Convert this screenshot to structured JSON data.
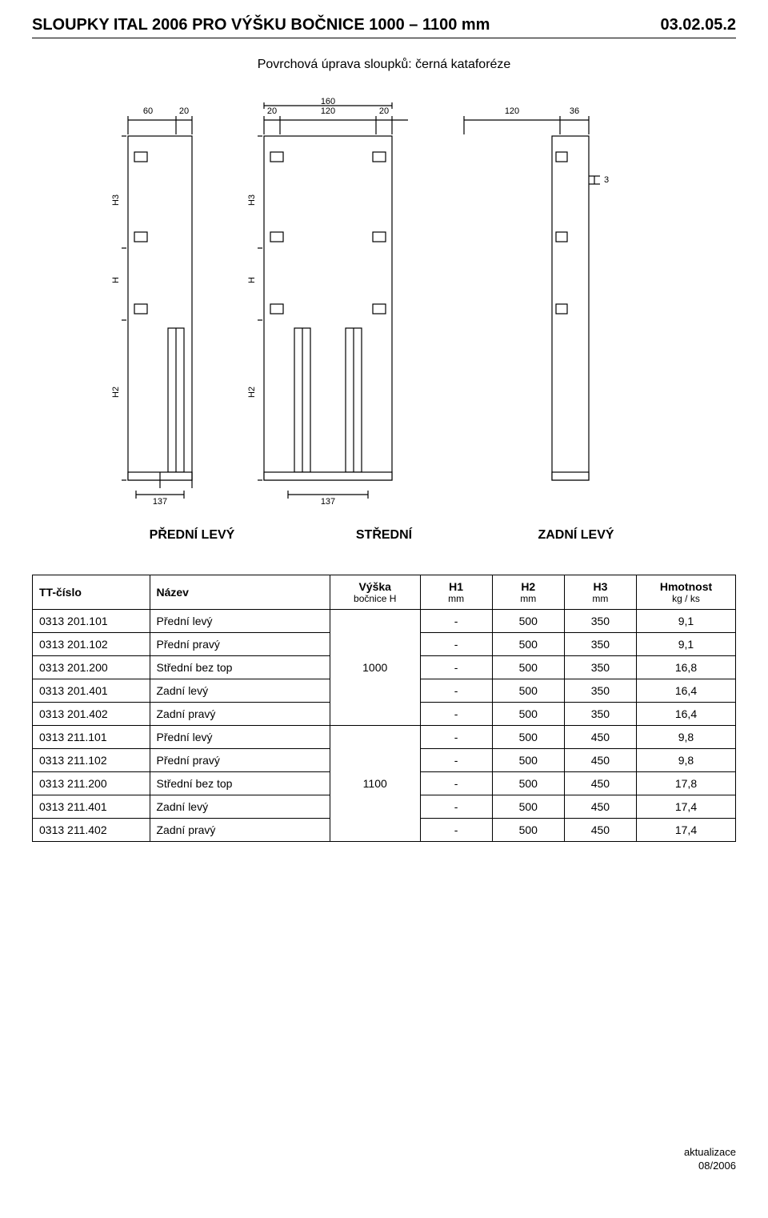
{
  "header": {
    "title_left": "SLOUPKY  ITAL 2006   PRO VÝŠKU BOČNICE  1000 – 1100 mm",
    "title_right": "03.02.05.2"
  },
  "subtitle": "Povrchová úprava sloupků: černá kataforéze",
  "diagram": {
    "dim_60": "60",
    "dim_20_a": "20",
    "dim_20_b": "20",
    "dim_160": "160",
    "dim_120_a": "120",
    "dim_20_c": "20",
    "dim_120_b": "120",
    "dim_36": "36",
    "dim_3": "3",
    "lbl_H3_a": "H3",
    "lbl_H3_b": "H3",
    "lbl_H_a": "H",
    "lbl_H_b": "H",
    "lbl_H2_a": "H2",
    "lbl_H2_b": "H2",
    "dim_137_a": "137",
    "dim_137_b": "137"
  },
  "diagram_labels": {
    "front": "PŘEDNÍ  LEVÝ",
    "mid": "STŘEDNÍ",
    "rear": "ZADNÍ  LEVÝ"
  },
  "table": {
    "headers": {
      "code": "TT-číslo",
      "name": "Název",
      "height_l1": "Výška",
      "height_l2": "bočnice H",
      "h1_l1": "H1",
      "h1_l2": "mm",
      "h2_l1": "H2",
      "h2_l2": "mm",
      "h3_l1": "H3",
      "h3_l2": "mm",
      "wt_l1": "Hmotnost",
      "wt_l2": "kg / ks"
    },
    "groups": [
      {
        "height": "1000",
        "rows": [
          {
            "code": "0313 201.101",
            "name": "Přední levý",
            "h1": "-",
            "h2": "500",
            "h3": "350",
            "wt": "9,1"
          },
          {
            "code": "0313 201.102",
            "name": "Přední pravý",
            "h1": "-",
            "h2": "500",
            "h3": "350",
            "wt": "9,1"
          },
          {
            "code": "0313 201.200",
            "name": "Střední bez top",
            "h1": "-",
            "h2": "500",
            "h3": "350",
            "wt": "16,8"
          },
          {
            "code": "0313 201.401",
            "name": "Zadní levý",
            "h1": "-",
            "h2": "500",
            "h3": "350",
            "wt": "16,4"
          },
          {
            "code": "0313 201.402",
            "name": "Zadní pravý",
            "h1": "-",
            "h2": "500",
            "h3": "350",
            "wt": "16,4"
          }
        ]
      },
      {
        "height": "1100",
        "rows": [
          {
            "code": "0313 211.101",
            "name": "Přední levý",
            "h1": "-",
            "h2": "500",
            "h3": "450",
            "wt": "9,8"
          },
          {
            "code": "0313 211.102",
            "name": "Přední pravý",
            "h1": "-",
            "h2": "500",
            "h3": "450",
            "wt": "9,8"
          },
          {
            "code": "0313 211.200",
            "name": "Střední bez top",
            "h1": "-",
            "h2": "500",
            "h3": "450",
            "wt": "17,8"
          },
          {
            "code": "0313 211.401",
            "name": "Zadní levý",
            "h1": "-",
            "h2": "500",
            "h3": "450",
            "wt": "17,4"
          },
          {
            "code": "0313 211.402",
            "name": "Zadní pravý",
            "h1": "-",
            "h2": "500",
            "h3": "450",
            "wt": "17,4"
          }
        ]
      }
    ]
  },
  "footer": {
    "line1": "aktualizace",
    "line2": "08/2006"
  },
  "style": {
    "stroke": "#000000",
    "fill_white": "#ffffff",
    "fill_light": "#f5f5f5",
    "dim_font_size": 11,
    "label_font_size": 12
  }
}
